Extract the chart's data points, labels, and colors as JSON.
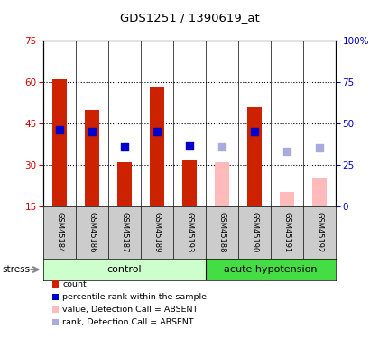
{
  "title": "GDS1251 / 1390619_at",
  "samples": [
    "GSM45184",
    "GSM45186",
    "GSM45187",
    "GSM45189",
    "GSM45193",
    "GSM45188",
    "GSM45190",
    "GSM45191",
    "GSM45192"
  ],
  "red_bars": [
    61,
    50,
    31,
    58,
    32,
    null,
    51,
    null,
    null
  ],
  "pink_bars": [
    null,
    null,
    null,
    null,
    null,
    31,
    null,
    20,
    25
  ],
  "blue_dots": [
    46,
    45,
    36,
    45,
    37,
    null,
    45,
    null,
    null
  ],
  "lavender_dots": [
    null,
    null,
    null,
    null,
    null,
    36,
    null,
    33,
    35
  ],
  "ylim_left": [
    15,
    75
  ],
  "ylim_right": [
    0,
    100
  ],
  "yticks_left": [
    15,
    30,
    45,
    60,
    75
  ],
  "yticks_right": [
    0,
    25,
    50,
    75,
    100
  ],
  "left_color": "#cc0000",
  "right_color": "#0000bb",
  "red_bar_color": "#cc2200",
  "pink_bar_color": "#ffbbbb",
  "blue_dot_color": "#0000cc",
  "lavender_dot_color": "#aaaadd",
  "ctrl_n": 5,
  "hyp_n": 4,
  "ctrl_color": "#ccffcc",
  "hyp_color": "#44dd44",
  "sample_bg": "#cccccc",
  "legend_items": [
    {
      "label": "count",
      "color": "#cc2200"
    },
    {
      "label": "percentile rank within the sample",
      "color": "#0000cc"
    },
    {
      "label": "value, Detection Call = ABSENT",
      "color": "#ffbbbb"
    },
    {
      "label": "rank, Detection Call = ABSENT",
      "color": "#aaaadd"
    }
  ]
}
